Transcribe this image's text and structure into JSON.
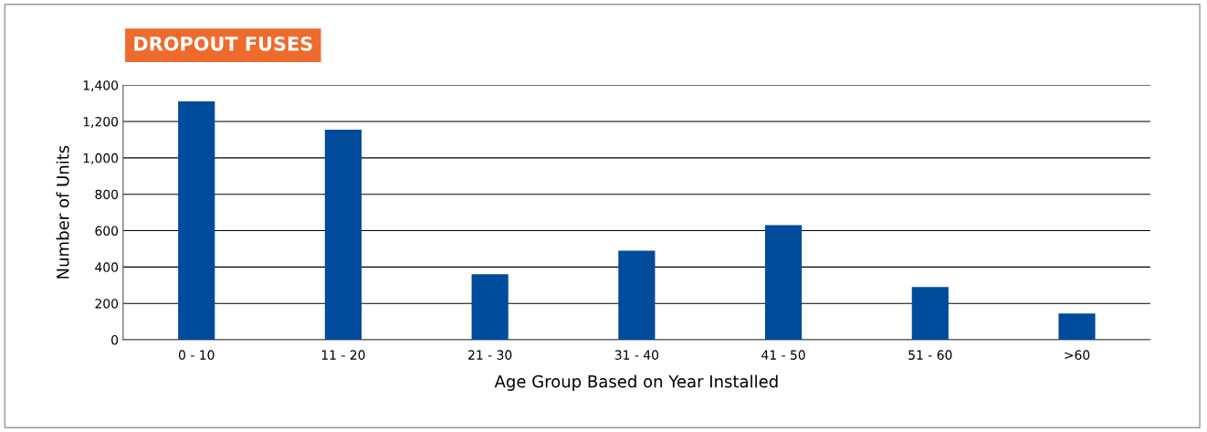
{
  "chart_data": {
    "type": "bar",
    "title": "DROPOUT FUSES",
    "xlabel": "Age Group Based on Year Installed",
    "ylabel": "Number of Units",
    "categories": [
      "0 - 10",
      "11 - 20",
      "21 - 30",
      "31 - 40",
      "41 - 50",
      "51 - 60",
      ">60"
    ],
    "values": [
      1310,
      1155,
      360,
      490,
      630,
      290,
      145
    ],
    "color": "#004b9c",
    "ylim": [
      0,
      1400
    ],
    "yticks": [
      0,
      {
        "value": 200,
        "label": "200"
      },
      {
        "value": 400,
        "label": "400"
      },
      {
        "value": 600,
        "label": "600"
      },
      {
        "value": 800,
        "label": "800"
      },
      {
        "value": 1000,
        "label": "1,000"
      },
      {
        "value": 1200,
        "label": "1,200"
      },
      {
        "value": 1400,
        "label": "1,400"
      }
    ],
    "grid": "y"
  }
}
